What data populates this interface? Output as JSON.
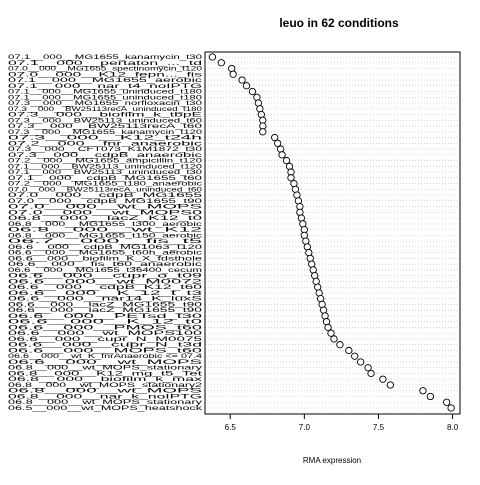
{
  "chart_data": {
    "type": "scatter",
    "title": "leuo in 62 conditions",
    "xlabel": "RMA expression",
    "ylabel": "",
    "xlim": [
      6.33,
      8.05
    ],
    "x_ticks": [
      6.5,
      7.0,
      7.5,
      8.0
    ],
    "x_tick_labels": [
      "6.5",
      "7.0",
      "7.5",
      "8.0"
    ],
    "grid": "horizontal dotted",
    "legend": "none",
    "series": [
      {
        "labels": [
          "07.1__000__MG1655_kanamycin_t30",
          "07.1__000__pertaton_..._td",
          "07.0__000__MG1655_spectinomycin_t120",
          "07.0__000__K12_fepn..._fis",
          "07.1__000__MG1655_aerobic",
          "07.1__000__nar_t4_noIPTG",
          "07.1__000__MG1655_uninduced_t180",
          "07.1__000__MG1655_uninduced_t180",
          "07.3__000__MG1655_norfloxacin_t30",
          "07.3__000__BW25113recA_uninduced_t180",
          "07.3__000__biofilm_k_tbpE",
          "07.3__000__BW25113_uninduced_t60",
          "07.3__000__BW25113recA_t60",
          "07.3__000__MG1655_kanamycin_t120",
          "07.3__000__K12_t24h",
          "07.2__000__fnr_anaerobic",
          "07.3__000__CFT073_K1M1872_t30",
          "07.3__000__cdpB_anaerobic",
          "07.2__000__MG1655_ampicillin_t120",
          "07.1__000__BW25113_uninduced_t120",
          "07.1__000__BW25113_uninduced_t30",
          "07.1__000__cdpB_MG1655_t60",
          "07.2__000__MG1655_t180_anaerobic",
          "07.0__000__BW25113recA_uninduced_t60",
          "07.0__000__cdpB_MG1655",
          "07.0__000__cdpB_MG1655_t90",
          "07.0__000__wt_MOPS",
          "07.0__000__wt_MOPS0",
          "06.8__000__lacZ_K12_t0",
          "06.8__000__MG1655_t300_aerobic",
          "06.8__000__wt_K12",
          "06.8__000__MG1655_t150_aerobic",
          "06.7__000__fis_t5",
          "06.6__000__cdpB_MG1063_t120",
          "06.6__000__MG1655_t60h_aerobic",
          "06.6__000__biofilm_K_X_fdsthole",
          "06.6__000__fis_t60_anaerobic",
          "06.6__000__MG1655_t36400_cecum",
          "06.6__000__cupr_o_t09",
          "06.6__000__wt_M0072",
          "06.6__000__cdpB_K12_t60",
          "06.6__000__K_12_t_t3",
          "06.6__000__nar14_K_luxS",
          "06.6__000__lacZ_MG1655_t90",
          "06.6__000__lacZ_MG1655_t90",
          "06.6__000__PETsd_t30",
          "06.6__000__K_12_t0",
          "06.6__000__PMOS_t60",
          "06.6__000__wt_MOPS100",
          "06.6__000__cupr_N_M0075",
          "06.6__000__cupr_N_t3d",
          "06.6__000__MOPS_t60",
          "06.6__000__wt_K_fnrAnaerobic <= 07.4",
          "06.6__000__wt_MOPS",
          "06.8__000__wt_MOPS_stationary",
          "06.8__000__K12_mg_t5_Tet",
          "06.8__000__biofilm_k_max",
          "06.8__000__wt_MOPS_stationary2",
          "06.8__000__wt_MOPS",
          "06.8__000__nar_k_noIPTG",
          "06.8__000__wt_MOPS_stationary",
          "06.5__000__wt_MOPS_heatshock"
        ],
        "values": [
          6.38,
          6.44,
          6.51,
          6.52,
          6.58,
          6.61,
          6.65,
          6.68,
          6.69,
          6.7,
          6.71,
          6.72,
          6.72,
          6.72,
          6.8,
          6.82,
          6.84,
          6.85,
          6.88,
          6.9,
          6.91,
          6.91,
          6.93,
          6.94,
          6.95,
          6.96,
          6.97,
          6.97,
          6.98,
          6.99,
          7.0,
          7.0,
          7.01,
          7.02,
          7.03,
          7.04,
          7.05,
          7.06,
          7.07,
          7.08,
          7.09,
          7.1,
          7.11,
          7.12,
          7.13,
          7.14,
          7.15,
          7.16,
          7.18,
          7.2,
          7.24,
          7.3,
          7.34,
          7.38,
          7.43,
          7.45,
          7.53,
          7.58,
          7.8,
          7.85,
          7.96,
          7.99
        ]
      }
    ]
  }
}
